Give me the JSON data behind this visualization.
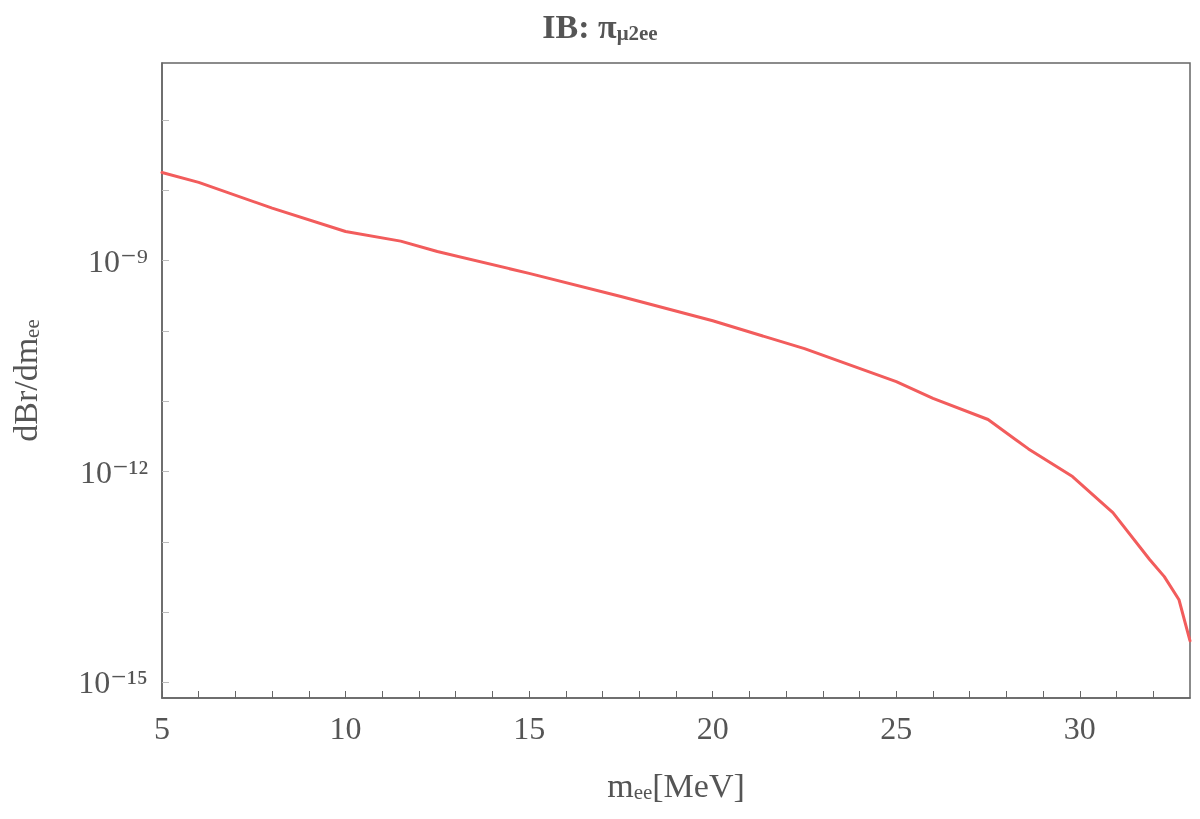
{
  "chart_data": {
    "type": "line",
    "title": "IB: π$_{μ2ee}$",
    "xlabel": "m$_{ee}$[MeV]",
    "ylabel": "dBr/dm$_{ee}$",
    "log": "y",
    "grid": false,
    "marker": "none",
    "line_style": "solid",
    "xlim": [
      5,
      33
    ],
    "ylim": [
      6e-16,
      6.5e-07
    ],
    "xticks": [
      5,
      {
        "value": 6,
        "label": null
      },
      {
        "value": 7,
        "label": null
      },
      {
        "value": 8,
        "label": null
      },
      {
        "value": 9,
        "label": null
      },
      10,
      {
        "value": 11,
        "label": null
      },
      {
        "value": 12,
        "label": null
      },
      {
        "value": 13,
        "label": null
      },
      {
        "value": 14,
        "label": null
      },
      15,
      {
        "value": 16,
        "label": null
      },
      {
        "value": 17,
        "label": null
      },
      {
        "value": 18,
        "label": null
      },
      {
        "value": 19,
        "label": null
      },
      20,
      {
        "value": 21,
        "label": null
      },
      {
        "value": 22,
        "label": null
      },
      {
        "value": 23,
        "label": null
      },
      {
        "value": 24,
        "label": null
      },
      25,
      {
        "value": 26,
        "label": null
      },
      {
        "value": 27,
        "label": null
      },
      {
        "value": 28,
        "label": null
      },
      {
        "value": 29,
        "label": null
      },
      30,
      {
        "value": 31,
        "label": null
      },
      {
        "value": 32,
        "label": null
      }
    ],
    "yticks": [
      {
        "value": 1e-15,
        "label": "10⁻¹⁵"
      },
      {
        "value": 1e-14,
        "label": null
      },
      {
        "value": 1e-13,
        "label": null
      },
      {
        "value": 1e-12,
        "label": "10⁻¹²"
      },
      {
        "value": 1e-11,
        "label": null
      },
      {
        "value": 1e-10,
        "label": null
      },
      {
        "value": 1e-09,
        "label": "10⁻⁹"
      },
      {
        "value": 1e-08,
        "label": null
      },
      {
        "value": 1e-07,
        "label": null
      }
    ],
    "series": [
      {
        "color": "#f25c5c",
        "x": [
          5,
          6,
          8,
          10,
          11.5,
          12.5,
          15,
          17.5,
          20,
          22.5,
          25,
          26,
          27.5,
          28.6,
          29.8,
          30.9,
          31.9,
          32.3,
          32.7,
          33
        ],
        "values": [
          1.8e-08,
          1.3e-08,
          5.6e-09,
          2.6e-09,
          1.9e-09,
          1.35e-09,
          6.6e-10,
          3.1e-10,
          1.4e-10,
          5.6e-11,
          1.9e-11,
          1.1e-11,
          5.5e-12,
          2.1e-12,
          8.5e-13,
          2.6e-13,
          5.6e-14,
          3.2e-14,
          1.5e-14,
          3.9e-15
        ]
      }
    ]
  }
}
